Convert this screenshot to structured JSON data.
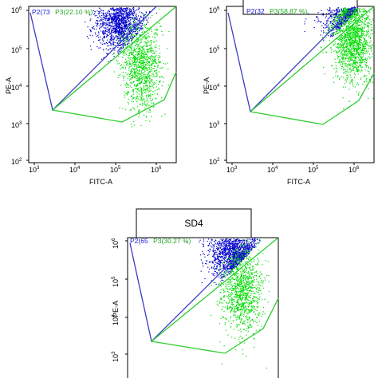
{
  "colors": {
    "p2": "#0000cc",
    "p3": "#00dd00",
    "p2_gate": "#3b3bc4",
    "p3_gate": "#2ecc2e"
  },
  "chart_data": [
    {
      "type": "scatter",
      "title": "",
      "xlabel": "FITC-A",
      "ylabel": "PE-A",
      "x_scale": "log",
      "y_scale": "log",
      "xlim": [
        300,
        4000000
      ],
      "ylim": [
        100,
        1000000
      ],
      "x_ticks": [
        "10^3",
        "10^4",
        "10^5",
        "10^6"
      ],
      "y_ticks": [
        "10^2",
        "10^3",
        "10^4",
        "10^5",
        "10^6"
      ],
      "gates": [
        {
          "label": "P2(73",
          "color": "blue"
        },
        {
          "label": "P3(22.10 %)",
          "color": "green",
          "percent": 22.1
        }
      ],
      "series": [
        {
          "name": "P2",
          "center": [
            100000,
            400000
          ],
          "count": 1400
        },
        {
          "name": "P3",
          "center": [
            400000,
            30000
          ],
          "count": 1100
        }
      ]
    },
    {
      "type": "scatter",
      "title": "",
      "xlabel": "FITC-A",
      "ylabel": "PE-A",
      "x_scale": "log",
      "y_scale": "log",
      "xlim": [
        300,
        4000000
      ],
      "ylim": [
        100,
        1000000
      ],
      "x_ticks": [
        "10^3",
        "10^4",
        "10^5",
        "10^6"
      ],
      "y_ticks": [
        "10^2",
        "10^3",
        "10^4",
        "10^5",
        "10^6"
      ],
      "gates": [
        {
          "label": "P2(32",
          "color": "blue"
        },
        {
          "label": "P3(58.87 %)",
          "color": "green",
          "percent": 58.87
        }
      ],
      "series": [
        {
          "name": "P2",
          "center": [
            600000,
            600000
          ],
          "count": 900
        },
        {
          "name": "P3",
          "center": [
            1000000,
            150000
          ],
          "count": 1600
        }
      ]
    },
    {
      "type": "scatter",
      "title": "SD4",
      "xlabel": "",
      "ylabel": "PE-A",
      "x_scale": "log",
      "y_scale": "log",
      "xlim": [
        300,
        4000000
      ],
      "ylim": [
        100,
        1000000
      ],
      "y_ticks": [
        "10^3",
        "10^4",
        "10^5",
        "10^6"
      ],
      "gates": [
        {
          "label": "P2(65",
          "color": "blue"
        },
        {
          "label": "P3(30.27 %)",
          "color": "green",
          "percent": 30.27
        }
      ],
      "series": [
        {
          "name": "P2",
          "center": [
            200000,
            400000
          ],
          "count": 1400
        },
        {
          "name": "P3",
          "center": [
            400000,
            40000
          ],
          "count": 1100
        }
      ]
    }
  ]
}
